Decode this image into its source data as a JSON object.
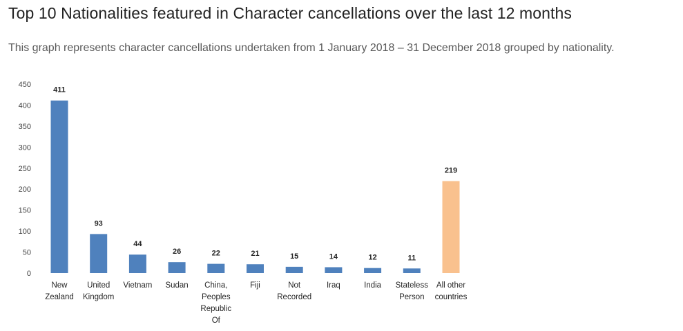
{
  "page": {
    "title": "Top 10 Nationalities featured in Character cancellations over the last 12 months",
    "subtitle": "This graph represents character cancellations undertaken from 1 January 2018 – 31 December 2018 grouped by nationality."
  },
  "chart_data": {
    "type": "bar",
    "categories": [
      [
        "New",
        "Zealand"
      ],
      [
        "United",
        "Kingdom"
      ],
      [
        "Vietnam"
      ],
      [
        "Sudan"
      ],
      [
        "China,",
        "Peoples",
        "Republic",
        "Of"
      ],
      [
        "Fiji"
      ],
      [
        "Not",
        "Recorded"
      ],
      [
        "Iraq"
      ],
      [
        "India"
      ],
      [
        "Stateless",
        "Person"
      ],
      [
        "All other",
        "countries"
      ]
    ],
    "values": [
      411,
      93,
      44,
      26,
      22,
      21,
      15,
      14,
      12,
      11,
      219
    ],
    "bar_colors": [
      "#4f81bd",
      "#4f81bd",
      "#4f81bd",
      "#4f81bd",
      "#4f81bd",
      "#4f81bd",
      "#4f81bd",
      "#4f81bd",
      "#4f81bd",
      "#4f81bd",
      "#f9c18e"
    ],
    "ylim": [
      0,
      450
    ],
    "yticks": [
      0,
      50,
      100,
      150,
      200,
      250,
      300,
      350,
      400,
      450
    ],
    "xlabel": "",
    "ylabel": "",
    "grid": false,
    "legend": "none"
  }
}
